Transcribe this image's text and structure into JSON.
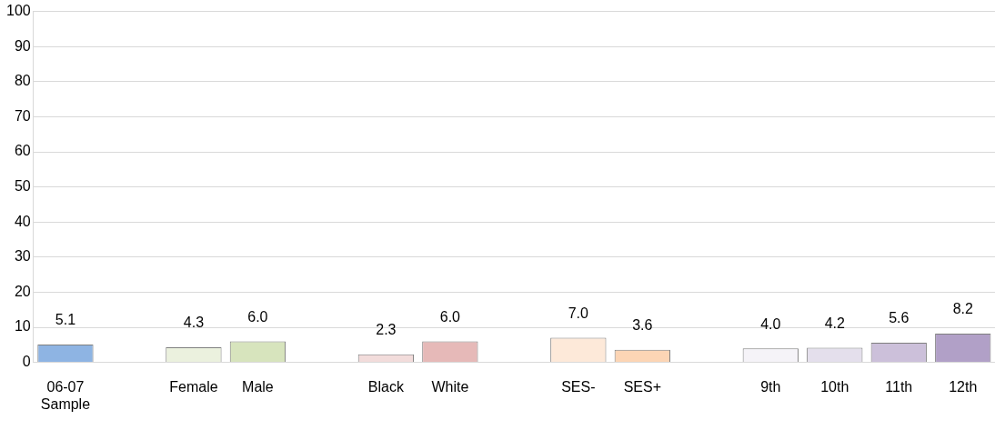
{
  "chart_data": {
    "type": "bar",
    "categories": [
      "06-07 Sample",
      null,
      "Female",
      "Male",
      null,
      "Black",
      "White",
      null,
      "SES-",
      "SES+",
      null,
      "9th",
      "10th",
      "11th",
      "12th"
    ],
    "values": [
      5.1,
      null,
      4.3,
      6.0,
      null,
      2.3,
      6.0,
      null,
      7.0,
      3.6,
      null,
      4.0,
      4.2,
      5.6,
      8.2
    ],
    "value_labels": [
      "5.1",
      null,
      "4.3",
      "6.0",
      null,
      "2.3",
      "6.0",
      null,
      "7.0",
      "3.6",
      null,
      "4.0",
      "4.2",
      "5.6",
      "8.2"
    ],
    "colors": [
      "#8eb4e3",
      "#ffffff",
      "#ebf1de",
      "#d7e4bd",
      "#ffffff",
      "#f2dcdb",
      "#e6b9b8",
      "#ffffff",
      "#fde9d9",
      "#fcd5b5",
      "#ffffff",
      "#f5f3f8",
      "#e4dfec",
      "#ccc0da",
      "#b1a0c7"
    ],
    "ylim": [
      0,
      100
    ],
    "yticks": [
      0,
      10,
      20,
      30,
      40,
      50,
      60,
      70,
      80,
      90,
      100
    ],
    "grid": "y",
    "legend": false
  }
}
